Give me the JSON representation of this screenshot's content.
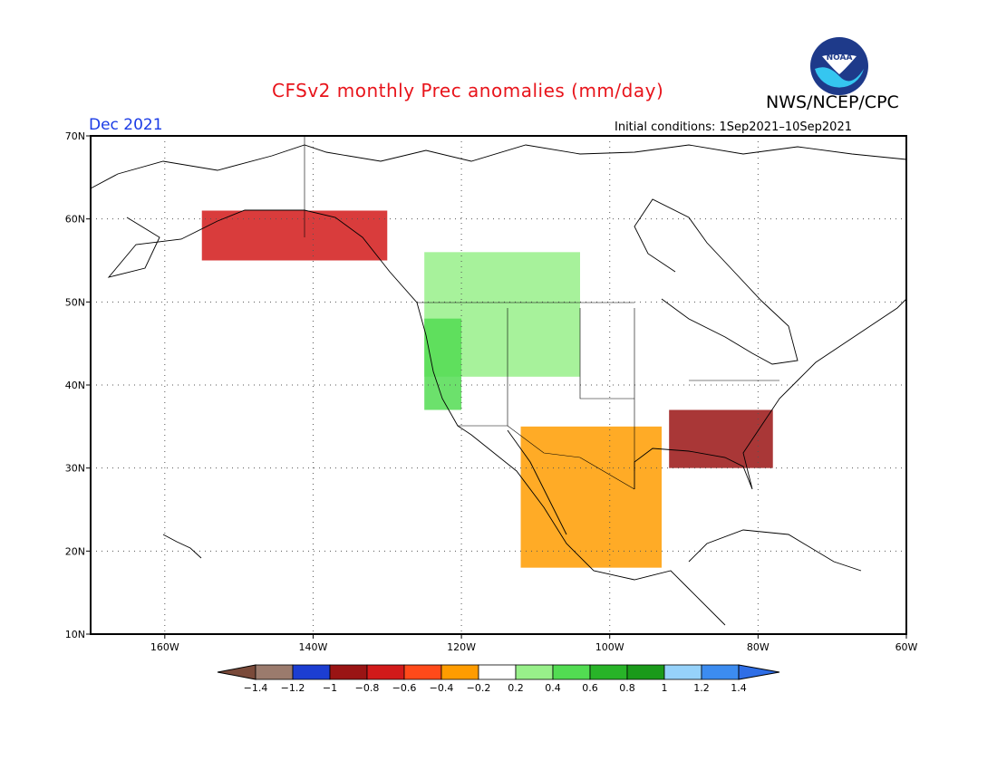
{
  "title": "CFSv2 monthly Prec anomalies (mm/day)",
  "org": "NWS/NCEP/CPC",
  "period": "Dec 2021",
  "initial_conditions": "Initial conditions: 1Sep2021–10Sep2021",
  "logo_text": "NOAA",
  "map": {
    "lat_range": [
      10,
      70
    ],
    "lon_range": [
      -170,
      -60
    ],
    "lat_ticks": [
      {
        "value": 70,
        "label": "70N"
      },
      {
        "value": 60,
        "label": "60N"
      },
      {
        "value": 50,
        "label": "50N"
      },
      {
        "value": 40,
        "label": "40N"
      },
      {
        "value": 30,
        "label": "30N"
      },
      {
        "value": 20,
        "label": "20N"
      },
      {
        "value": 10,
        "label": "10N"
      }
    ],
    "lon_ticks": [
      {
        "value": -160,
        "label": "160W"
      },
      {
        "value": -140,
        "label": "140W"
      },
      {
        "value": -120,
        "label": "120W"
      },
      {
        "value": -100,
        "label": "100W"
      },
      {
        "value": -80,
        "label": "80W"
      },
      {
        "value": -60,
        "label": "60W"
      }
    ],
    "grid": true
  },
  "colorbar": {
    "labels": [
      "−1.4",
      "−1.2",
      "−1",
      "−0.8",
      "−0.6",
      "−0.4",
      "−0.2",
      "0.2",
      "0.4",
      "0.6",
      "0.8",
      "1",
      "1.2",
      "1.4"
    ],
    "colors": [
      "#7a4a3a",
      "#9b7b6d",
      "#1c3ed2",
      "#9a1414",
      "#d21a1a",
      "#ff4a1a",
      "#ff9c00",
      "#ffffff",
      "#98f08a",
      "#52dc52",
      "#28b428",
      "#1a9a1a",
      "#96d2fa",
      "#3c8cf0",
      "#2f6ee6"
    ]
  },
  "anomaly_regions": [
    {
      "name": "pacific-northwest-wet",
      "level": "0.4",
      "color": "#98f08a",
      "lon": [
        -125,
        -104
      ],
      "lat": [
        41,
        56
      ]
    },
    {
      "name": "coastal-west-wet",
      "level": "0.6",
      "color": "#52dc52",
      "lon": [
        -125,
        -120
      ],
      "lat": [
        37,
        48
      ]
    },
    {
      "name": "mexico-southwest-dry",
      "level": "-0.4",
      "color": "#ff9c00",
      "lon": [
        -112,
        -93
      ],
      "lat": [
        18,
        35
      ]
    },
    {
      "name": "southeast-dry",
      "level": "-0.8",
      "color": "#9a1414",
      "lon": [
        -92,
        -78
      ],
      "lat": [
        30,
        37
      ]
    },
    {
      "name": "alaska-coast-dry",
      "level": "-0.6",
      "color": "#d21a1a",
      "lon": [
        -155,
        -130
      ],
      "lat": [
        55,
        61
      ]
    }
  ]
}
